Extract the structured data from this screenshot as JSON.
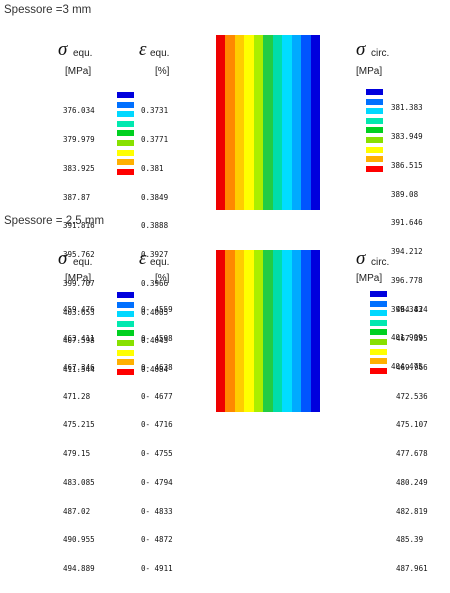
{
  "colors": [
    "#0000dd",
    "#0070ff",
    "#00d8ff",
    "#00e8b0",
    "#00d020",
    "#88e000",
    "#ffff00",
    "#ffb000",
    "#ff0000"
  ],
  "sections": [
    {
      "title": "Spessore =3 mm",
      "sigma_equ": {
        "symbol": "σ",
        "subscript": "equ.",
        "unit": "[MPa]",
        "values": [
          "376.034",
          "379.979",
          "383.925",
          "387.87",
          "391.816",
          "395.762",
          "399.707",
          "403.653",
          "407.598",
          "411.544"
        ]
      },
      "eps_equ": {
        "symbol": "ε",
        "subscript": "equ.",
        "unit": "[%]",
        "values": [
          "0.3731",
          "0.3771",
          "0.381",
          "0.3849",
          "0.3888",
          "0.3927",
          "0.3966",
          "0.4005",
          "0.4045",
          "0.4084"
        ]
      },
      "sigma_circ": {
        "symbol": "σ",
        "subscript": "circ.",
        "unit": "[MPa]",
        "values": [
          "381.383",
          "383.949",
          "386.515",
          "389.08",
          "391.646",
          "394.212",
          "396.778",
          "399.343",
          "401.909",
          "404.475"
        ]
      },
      "contour_bands": [
        "#ee0000",
        "#ff8800",
        "#ffcc00",
        "#ffff00",
        "#aaee00",
        "#22cc44",
        "#00ddaa",
        "#00ddff",
        "#00aaff",
        "#0055ff",
        "#0000dd"
      ]
    },
    {
      "title": "Spessore = 2.5 mm",
      "sigma_equ": {
        "symbol": "σ",
        "subscript": "equ.",
        "unit": "[MPa]",
        "values": [
          "459.476",
          "463.411",
          "467.346",
          "471.28",
          "475.215",
          "479.15",
          "483.085",
          "487.02",
          "490.955",
          "494.889"
        ]
      },
      "eps_equ": {
        "symbol": "ε",
        "subscript": "equ.",
        "unit": "[%]",
        "values": [
          "0- 4559",
          "0- 4598",
          "0- 4638",
          "0- 4677",
          "0- 4716",
          "0- 4755",
          "0- 4794",
          "0- 4833",
          "0- 4872",
          "0- 4911"
        ]
      },
      "sigma_circ": {
        "symbol": "σ",
        "subscript": "circ.",
        "unit": "[MPa]",
        "values": [
          "464.824",
          "467.395",
          "469.966",
          "472.536",
          "475.107",
          "477.678",
          "480.249",
          "482.819",
          "485.39",
          "487.961"
        ]
      },
      "contour_bands": [
        "#ee0000",
        "#ff8800",
        "#ffcc00",
        "#ffff00",
        "#aaee00",
        "#22cc44",
        "#00ddaa",
        "#00ddff",
        "#00aaff",
        "#0055ff",
        "#0000dd"
      ]
    }
  ]
}
